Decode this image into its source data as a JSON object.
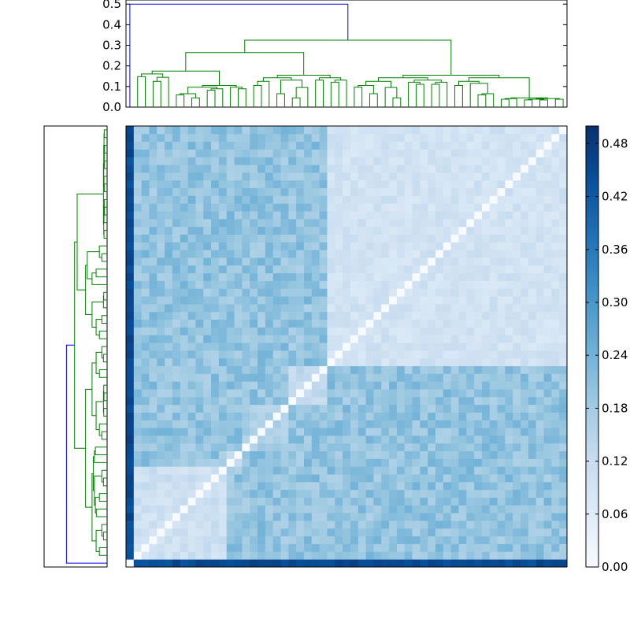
{
  "chart_data": [
    {
      "type": "dendrogram",
      "orientation": "top",
      "ylim": [
        0,
        0.52
      ],
      "yticks": [
        0.0,
        0.1,
        0.2,
        0.3,
        0.4,
        0.5
      ],
      "ytick_labels": [
        "0.0",
        "0.1",
        "0.2",
        "0.3",
        "0.4",
        "0.5"
      ],
      "leaf_count": 57,
      "root_height": 0.5,
      "colors": {
        "root_link": "#0000ff",
        "cluster": "#008000"
      },
      "merge_heights": [
        0.5,
        0.325,
        0.265,
        0.175,
        0.195,
        0.155,
        0.145,
        0.125,
        0.105,
        0.135,
        0.065,
        0.095,
        0.045
      ]
    },
    {
      "type": "dendrogram",
      "orientation": "left",
      "leaf_count": 57,
      "root_height": 0.5,
      "colors": {
        "root_link": "#0000ff",
        "cluster": "#008000"
      },
      "merge_heights": [
        0.5,
        0.4,
        0.265,
        0.185,
        0.135,
        0.095,
        0.065,
        0.045
      ]
    },
    {
      "type": "heatmap",
      "size": 57,
      "colormap": "Blues",
      "vmin": 0.0,
      "vmax": 0.5,
      "diagonal": 0.0,
      "description_cells": "pairwise distance matrix ordered by dendrogram leaves; first row/col (outlier) near 0.40–0.48",
      "groups": [
        {
          "name": "g1",
          "start": 1,
          "end": 13,
          "within": 0.08
        },
        {
          "name": "g2",
          "start": 13,
          "end": 15,
          "within": 0.12
        },
        {
          "name": "g3",
          "start": 15,
          "end": 21,
          "within": 0.14
        },
        {
          "name": "g4",
          "start": 21,
          "end": 26,
          "within": 0.1
        },
        {
          "name": "g5",
          "start": 26,
          "end": 57,
          "within": 0.07
        }
      ],
      "between": 0.16,
      "outlier_distance": 0.43
    },
    {
      "type": "colorbar",
      "vmin": 0.0,
      "vmax": 0.5,
      "ticks": [
        0.0,
        0.06,
        0.12,
        0.18,
        0.24,
        0.3,
        0.36,
        0.42,
        0.48
      ],
      "tick_labels": [
        "0.00",
        "0.06",
        "0.12",
        "0.18",
        "0.24",
        "0.30",
        "0.36",
        "0.42",
        "0.48"
      ]
    }
  ]
}
